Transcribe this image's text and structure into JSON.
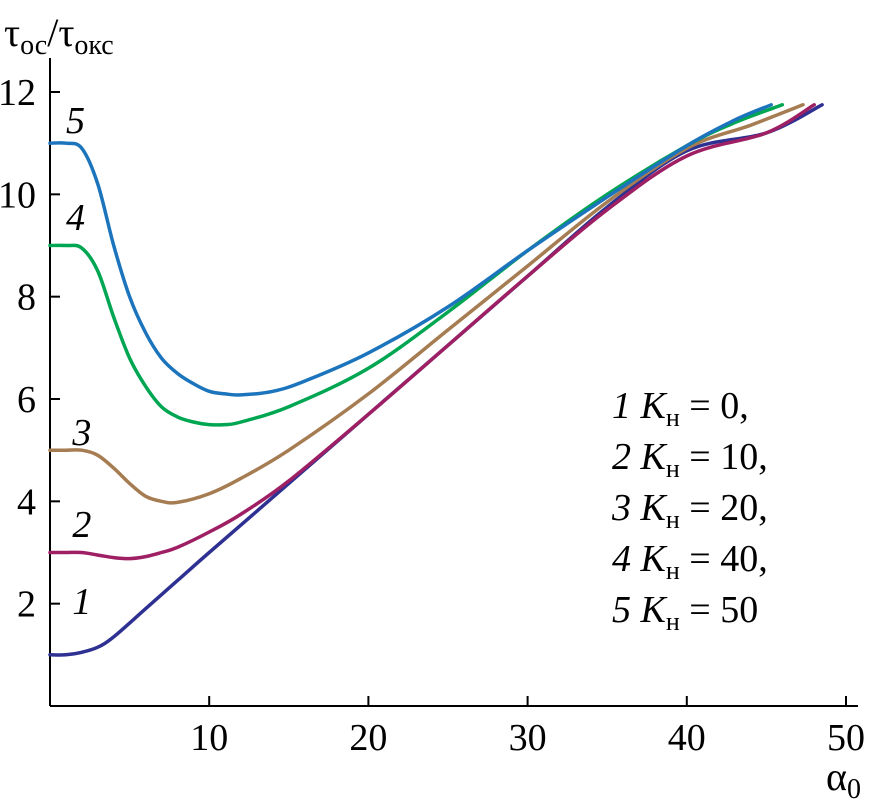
{
  "chart_data": {
    "type": "line",
    "ylabel": {
      "main": "τ",
      "sub1": "ос",
      "sep": "/τ",
      "sub2": "окс"
    },
    "xlabel": {
      "main": "α",
      "sub": "0"
    },
    "xlim": [
      0,
      50
    ],
    "ylim": [
      0,
      12
    ],
    "x_ticks": [
      10,
      20,
      30,
      40,
      50
    ],
    "y_ticks": [
      2,
      4,
      6,
      8,
      10,
      12
    ],
    "grid": false,
    "series": [
      {
        "curve_label": "1",
        "color": "#2e3192",
        "points": [
          [
            0,
            1.0
          ],
          [
            1,
            1.0
          ],
          [
            2,
            1.05
          ],
          [
            3,
            1.15
          ],
          [
            4,
            1.35
          ],
          [
            6,
            1.9
          ],
          [
            8,
            2.45
          ],
          [
            10,
            3.0
          ],
          [
            15,
            4.35
          ],
          [
            20,
            5.7
          ],
          [
            25,
            7.05
          ],
          [
            30,
            8.4
          ],
          [
            35,
            9.75
          ],
          [
            40,
            10.85
          ],
          [
            45,
            11.2
          ],
          [
            48.5,
            11.75
          ]
        ]
      },
      {
        "curve_label": "2",
        "color": "#9e1f63",
        "points": [
          [
            0,
            3.0
          ],
          [
            1,
            3.0
          ],
          [
            2,
            3.0
          ],
          [
            3,
            2.95
          ],
          [
            4,
            2.9
          ],
          [
            5,
            2.88
          ],
          [
            6,
            2.92
          ],
          [
            7,
            3.0
          ],
          [
            8,
            3.1
          ],
          [
            10,
            3.4
          ],
          [
            12,
            3.75
          ],
          [
            15,
            4.4
          ],
          [
            20,
            5.7
          ],
          [
            25,
            7.05
          ],
          [
            30,
            8.4
          ],
          [
            35,
            9.7
          ],
          [
            40,
            10.75
          ],
          [
            45,
            11.2
          ],
          [
            48,
            11.75
          ]
        ]
      },
      {
        "curve_label": "3",
        "color": "#a67c52",
        "points": [
          [
            0,
            5.0
          ],
          [
            1,
            5.0
          ],
          [
            2,
            5.0
          ],
          [
            3,
            4.9
          ],
          [
            4,
            4.65
          ],
          [
            5,
            4.35
          ],
          [
            6,
            4.1
          ],
          [
            7,
            4.0
          ],
          [
            8,
            3.98
          ],
          [
            10,
            4.15
          ],
          [
            12,
            4.45
          ],
          [
            15,
            5.0
          ],
          [
            20,
            6.1
          ],
          [
            25,
            7.35
          ],
          [
            30,
            8.6
          ],
          [
            35,
            9.85
          ],
          [
            40,
            10.9
          ],
          [
            44,
            11.35
          ],
          [
            47.3,
            11.75
          ]
        ]
      },
      {
        "curve_label": "4",
        "color": "#00a651",
        "points": [
          [
            0,
            9.0
          ],
          [
            1,
            9.0
          ],
          [
            2,
            8.95
          ],
          [
            3,
            8.5
          ],
          [
            4,
            7.6
          ],
          [
            5,
            6.8
          ],
          [
            6,
            6.25
          ],
          [
            7,
            5.85
          ],
          [
            8,
            5.65
          ],
          [
            9,
            5.55
          ],
          [
            10,
            5.5
          ],
          [
            11,
            5.5
          ],
          [
            12,
            5.55
          ],
          [
            15,
            5.85
          ],
          [
            20,
            6.6
          ],
          [
            25,
            7.7
          ],
          [
            30,
            8.9
          ],
          [
            35,
            10.0
          ],
          [
            40,
            10.95
          ],
          [
            43,
            11.4
          ],
          [
            46,
            11.75
          ]
        ]
      },
      {
        "curve_label": "5",
        "color": "#1c75bc",
        "points": [
          [
            0,
            11.0
          ],
          [
            1,
            11.0
          ],
          [
            2,
            10.9
          ],
          [
            3,
            10.2
          ],
          [
            4,
            9.0
          ],
          [
            5,
            8.0
          ],
          [
            6,
            7.3
          ],
          [
            7,
            6.8
          ],
          [
            8,
            6.5
          ],
          [
            9,
            6.3
          ],
          [
            10,
            6.15
          ],
          [
            11,
            6.1
          ],
          [
            12,
            6.08
          ],
          [
            14,
            6.15
          ],
          [
            16,
            6.35
          ],
          [
            20,
            6.9
          ],
          [
            25,
            7.8
          ],
          [
            30,
            8.9
          ],
          [
            35,
            9.95
          ],
          [
            40,
            10.95
          ],
          [
            43,
            11.45
          ],
          [
            45.3,
            11.75
          ]
        ]
      }
    ],
    "curve_label_positions": [
      [
        2,
        1.8
      ],
      [
        2,
        3.3
      ],
      [
        2,
        5.1
      ],
      [
        1.6,
        9.3
      ],
      [
        1.6,
        11.2
      ]
    ],
    "legend": [
      {
        "num": "1",
        "k": "K",
        "sub": "н",
        "val": " = 0,"
      },
      {
        "num": "2",
        "k": "K",
        "sub": "н",
        "val": " = 10,"
      },
      {
        "num": "3",
        "k": "K",
        "sub": "н",
        "val": " = 20,"
      },
      {
        "num": "4",
        "k": "K",
        "sub": "н",
        "val": " = 40,"
      },
      {
        "num": "5",
        "k": "K",
        "sub": "н",
        "val": " = 50"
      }
    ]
  }
}
